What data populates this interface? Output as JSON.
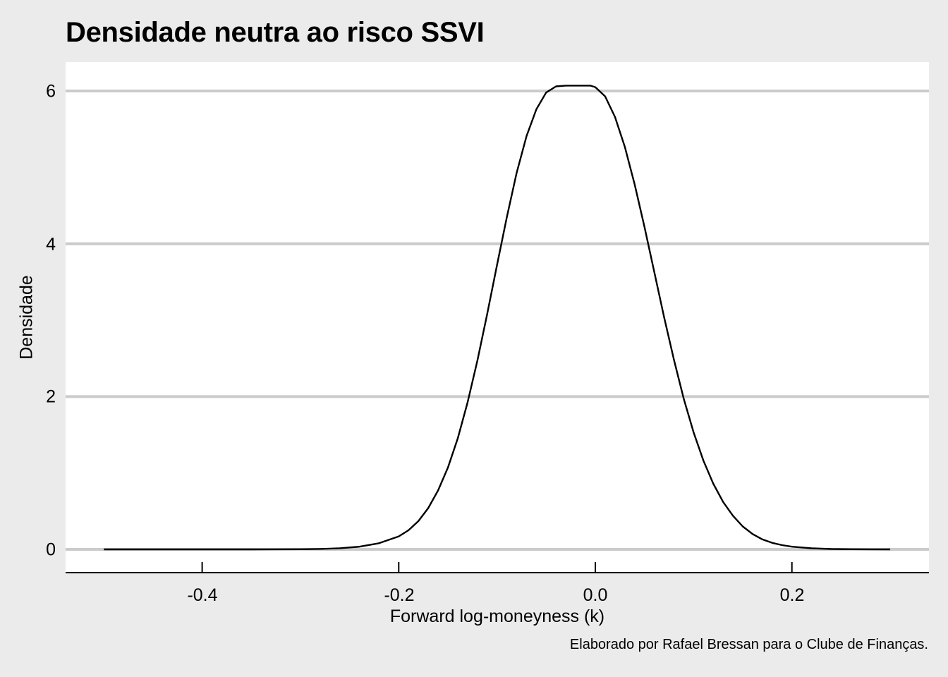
{
  "chart": {
    "title": "Densidade neutra ao risco SSVI",
    "ylabel": "Densidade",
    "xlabel": "Forward log-moneyness (k)",
    "caption": "Elaborado por Rafael Bressan para o Clube de Finanças.",
    "y_ticks": [
      "0",
      "2",
      "4",
      "6"
    ],
    "x_ticks": [
      "-0.4",
      "-0.2",
      "0.0",
      "0.2"
    ],
    "colors": {
      "background": "#ebebeb",
      "panel": "#ffffff",
      "grid": "#cbcbcb",
      "line": "#000000"
    }
  },
  "chart_data": {
    "type": "line",
    "title": "Densidade neutra ao risco SSVI",
    "xlabel": "Forward log-moneyness (k)",
    "ylabel": "Densidade",
    "caption": "Elaborado por Rafael Bressan para o Clube de Finanças.",
    "xlim": [
      -0.54,
      0.34
    ],
    "ylim": [
      -0.3,
      6.35
    ],
    "x_ticks": [
      -0.4,
      -0.2,
      0.0,
      0.2
    ],
    "y_ticks": [
      0,
      2,
      4,
      6
    ],
    "grid": "horizontal major only",
    "legend": "none",
    "series": [
      {
        "name": "Densidade",
        "x": [
          -0.5,
          -0.45,
          -0.4,
          -0.35,
          -0.3,
          -0.28,
          -0.26,
          -0.24,
          -0.22,
          -0.2,
          -0.19,
          -0.18,
          -0.17,
          -0.16,
          -0.15,
          -0.14,
          -0.13,
          -0.12,
          -0.11,
          -0.1,
          -0.09,
          -0.08,
          -0.07,
          -0.06,
          -0.05,
          -0.04,
          -0.03,
          -0.02,
          -0.01,
          -0.005,
          0.0,
          0.01,
          0.02,
          0.03,
          0.04,
          0.05,
          0.06,
          0.07,
          0.08,
          0.09,
          0.1,
          0.11,
          0.12,
          0.13,
          0.14,
          0.15,
          0.16,
          0.17,
          0.18,
          0.19,
          0.2,
          0.22,
          0.24,
          0.26,
          0.28,
          0.3
        ],
        "y": [
          0.0,
          0.0,
          0.0,
          0.0,
          0.002,
          0.006,
          0.015,
          0.035,
          0.08,
          0.17,
          0.25,
          0.37,
          0.54,
          0.77,
          1.07,
          1.45,
          1.92,
          2.47,
          3.08,
          3.72,
          4.35,
          4.93,
          5.41,
          5.76,
          5.98,
          6.06,
          6.07,
          6.07,
          6.07,
          6.07,
          6.05,
          5.93,
          5.66,
          5.27,
          4.78,
          4.22,
          3.63,
          3.04,
          2.48,
          1.97,
          1.53,
          1.16,
          0.86,
          0.62,
          0.44,
          0.3,
          0.2,
          0.13,
          0.085,
          0.055,
          0.035,
          0.014,
          0.005,
          0.002,
          0.001,
          0.0
        ]
      }
    ]
  }
}
